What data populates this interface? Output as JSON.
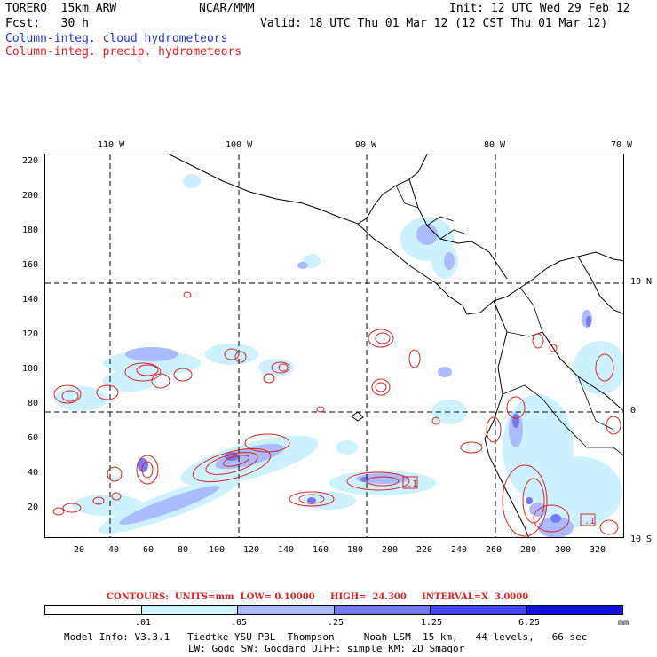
{
  "header": {
    "model": "TORERO  15km ARW",
    "center": "NCAR/MMM",
    "init": "Init: 12 UTC Wed 29 Feb 12",
    "fcst": "Fcst:   30 h",
    "valid": "Valid: 18 UTC Thu 01 Mar 12 (12 CST Thu 01 Mar 12)",
    "field1": "Column-integ. cloud hydrometeors",
    "field2": "Column-integ. precip. hydrometeors"
  },
  "colors": {
    "cloud": "#2233dd",
    "precip": "#dd2222",
    "scale": [
      "#ffffff",
      "#ccf2ff",
      "#aabbff",
      "#7777ee",
      "#4444ee",
      "#1111dd"
    ]
  },
  "axes": {
    "top_lon": [
      "110 W",
      "100 W",
      "90 W",
      "80 W",
      "70 W"
    ],
    "right_lat": [
      "10 N",
      "0",
      "10 S"
    ],
    "left_y": [
      "220",
      "200",
      "180",
      "160",
      "140",
      "120",
      "100",
      "80",
      "60",
      "40",
      "20"
    ],
    "bottom_x": [
      "20",
      "40",
      "60",
      "80",
      "100",
      "120",
      "140",
      "160",
      "180",
      "200",
      "220",
      "240",
      "260",
      "280",
      "300",
      "320"
    ]
  },
  "contours": {
    "text": "CONTOURS:  UNITS=mm  LOW= 0.10000     HIGH=  24.300     INTERVAL=X  3.0000",
    "labels": [
      ".1",
      ".1"
    ]
  },
  "colorbar": {
    "labels": [
      ".01",
      ".05",
      ".25",
      "1.25",
      "6.25"
    ],
    "units": "mm"
  },
  "info": {
    "line1": "Model Info: V3.3.1   Tiedtke YSU PBL  Thompson     Noah LSM  15 km,   44 levels,   66 sec",
    "line2": "LW: Godd SW: Goddard DIFF: simple KM: 2D Smagor"
  }
}
